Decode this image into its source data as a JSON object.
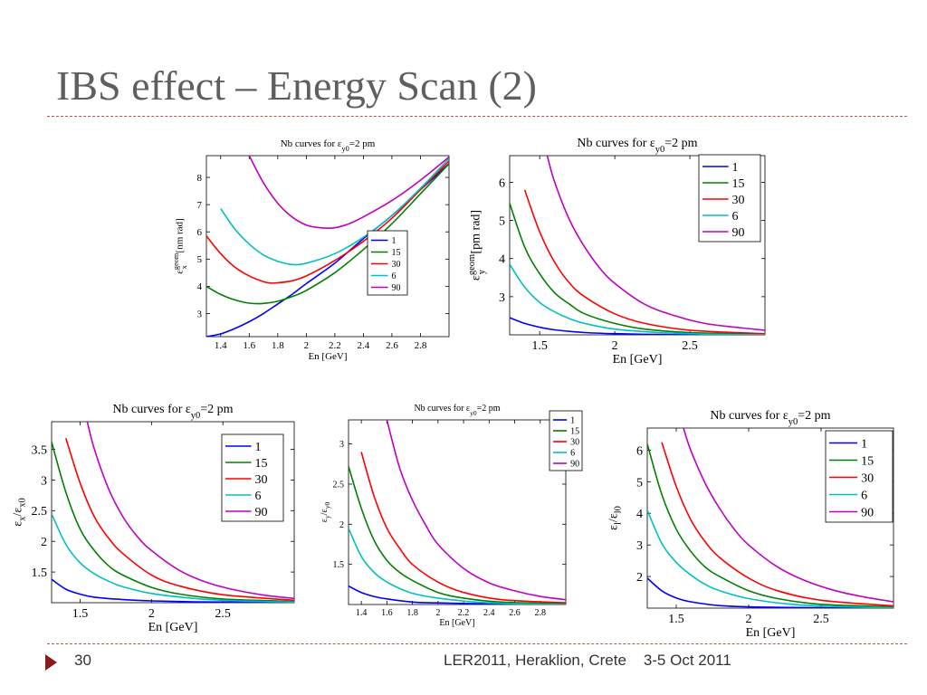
{
  "slide": {
    "title": "IBS effect – Energy Scan (2)",
    "page_number": "30",
    "footer_conference": "LER2011, Heraklion, Crete",
    "footer_date": "3-5 Oct 2011",
    "accent_color": "#c0504d",
    "arrow_color": "#8b1a1a"
  },
  "series_colors": {
    "1": "#0000ff",
    "15": "#008000",
    "30": "#ff0000",
    "6": "#00c0c0",
    "90": "#c000c0"
  },
  "chart_data": [
    {
      "type": "line",
      "title_main": "Nb curves for ε",
      "title_sub": "y0",
      "title_tail": "=2 pm",
      "xlabel": "En [GeV]",
      "ylabel_main": "ε",
      "ylabel_sup": "geom",
      "ylabel_sub": "x",
      "ylabel_tail": " [nm rad]",
      "xlim": [
        1.3,
        3.0
      ],
      "ylim": [
        2.15,
        8.8
      ],
      "xticks": [
        1.4,
        1.6,
        1.8,
        2,
        2.2,
        2.4,
        2.6,
        2.8
      ],
      "xtick_labels": [
        "1.4",
        "1.6",
        "1.8",
        "2",
        "2.2",
        "2.4",
        "2.6",
        "2.8"
      ],
      "yticks": [
        3,
        4,
        5,
        6,
        7,
        8
      ],
      "ytick_labels": [
        "3",
        "4",
        "5",
        "6",
        "7",
        "8"
      ],
      "legend_position": "lower-right",
      "series": [
        {
          "name": "1",
          "x": [
            1.3,
            1.4,
            1.5,
            1.6,
            1.7,
            1.8,
            1.9,
            2.0,
            2.2,
            2.4,
            2.6,
            2.8,
            3.0
          ],
          "y": [
            2.15,
            2.25,
            2.45,
            2.7,
            3.0,
            3.35,
            3.7,
            4.1,
            4.85,
            5.75,
            6.6,
            7.55,
            8.5
          ]
        },
        {
          "name": "15",
          "x": [
            1.3,
            1.4,
            1.5,
            1.6,
            1.7,
            1.8,
            1.9,
            2.0,
            2.2,
            2.4,
            2.6,
            2.8,
            3.0
          ],
          "y": [
            4.0,
            3.7,
            3.5,
            3.38,
            3.37,
            3.45,
            3.62,
            3.85,
            4.5,
            5.35,
            6.3,
            7.4,
            8.5
          ]
        },
        {
          "name": "30",
          "x": [
            1.3,
            1.4,
            1.5,
            1.6,
            1.7,
            1.75,
            1.8,
            1.9,
            2.0,
            2.2,
            2.4,
            2.6,
            2.8,
            3.0
          ],
          "y": [
            5.85,
            5.2,
            4.7,
            4.38,
            4.17,
            4.12,
            4.13,
            4.2,
            4.38,
            4.95,
            5.65,
            6.5,
            7.55,
            8.6
          ]
        },
        {
          "name": "6",
          "x": [
            1.4,
            1.5,
            1.6,
            1.7,
            1.8,
            1.9,
            2.0,
            2.2,
            2.4,
            2.6,
            2.8,
            3.0
          ],
          "y": [
            6.85,
            6.1,
            5.55,
            5.15,
            4.92,
            4.8,
            4.85,
            5.2,
            5.8,
            6.6,
            7.6,
            8.7
          ]
        },
        {
          "name": "90",
          "x": [
            1.6,
            1.7,
            1.8,
            1.9,
            2.0,
            2.1,
            2.2,
            2.3,
            2.4,
            2.6,
            2.8,
            3.0
          ],
          "y": [
            8.8,
            7.8,
            7.05,
            6.55,
            6.25,
            6.15,
            6.15,
            6.3,
            6.55,
            7.15,
            7.9,
            8.75
          ]
        }
      ]
    },
    {
      "type": "line",
      "title_main": "Nb curves for ε",
      "title_sub": "y0",
      "title_tail": "=2 pm",
      "xlabel": "En [GeV]",
      "ylabel_main": "ε",
      "ylabel_sup": "geom",
      "ylabel_sub": "y",
      "ylabel_tail": " [pm rad]",
      "xlim": [
        1.3,
        3.0
      ],
      "ylim": [
        2.0,
        6.7
      ],
      "xticks": [
        1.5,
        2,
        2.5
      ],
      "xtick_labels": [
        "1.5",
        "2",
        "2.5"
      ],
      "yticks": [
        3,
        4,
        5,
        6
      ],
      "ytick_labels": [
        "3",
        "4",
        "5",
        "6"
      ],
      "legend_position": "top-right",
      "series": [
        {
          "name": "1",
          "x": [
            1.3,
            1.4,
            1.5,
            1.6,
            1.8,
            2.0,
            2.3,
            2.6,
            3.0
          ],
          "y": [
            2.45,
            2.3,
            2.2,
            2.13,
            2.06,
            2.03,
            2.01,
            2.0,
            2.0
          ]
        },
        {
          "name": "15",
          "x": [
            1.3,
            1.4,
            1.5,
            1.6,
            1.7,
            1.8,
            2.0,
            2.2,
            2.5,
            3.0
          ],
          "y": [
            5.45,
            4.3,
            3.6,
            3.1,
            2.8,
            2.55,
            2.3,
            2.15,
            2.06,
            2.02
          ]
        },
        {
          "name": "30",
          "x": [
            1.4,
            1.5,
            1.6,
            1.7,
            1.8,
            2.0,
            2.2,
            2.5,
            3.0
          ],
          "y": [
            5.8,
            4.7,
            3.9,
            3.35,
            3.0,
            2.55,
            2.3,
            2.12,
            2.03
          ]
        },
        {
          "name": "6",
          "x": [
            1.3,
            1.4,
            1.5,
            1.6,
            1.7,
            1.8,
            2.0,
            2.3,
            2.6,
            3.0
          ],
          "y": [
            3.85,
            3.25,
            2.85,
            2.6,
            2.42,
            2.3,
            2.15,
            2.06,
            2.02,
            2.0
          ]
        },
        {
          "name": "90",
          "x": [
            1.55,
            1.6,
            1.7,
            1.8,
            1.9,
            2.0,
            2.2,
            2.4,
            2.6,
            2.8,
            3.0
          ],
          "y": [
            6.7,
            6.0,
            5.0,
            4.3,
            3.75,
            3.35,
            2.8,
            2.5,
            2.3,
            2.2,
            2.12
          ]
        }
      ]
    },
    {
      "type": "line",
      "title_main": "Nb curves for ε",
      "title_sub": "y0",
      "title_tail": "=2 pm",
      "xlabel": "En [GeV]",
      "ylabel_main": "ε",
      "ylabel_sup": "",
      "ylabel_sub": "x",
      "ylabel_tail": "/ε",
      "ylabel_sub2": "x0",
      "xlim": [
        1.3,
        3.0
      ],
      "ylim": [
        1.0,
        3.95
      ],
      "xticks": [
        1.5,
        2,
        2.5
      ],
      "xtick_labels": [
        "1.5",
        "2",
        "2.5"
      ],
      "yticks": [
        1.5,
        2,
        2.5,
        3,
        3.5
      ],
      "ytick_labels": [
        "1.5",
        "2",
        "2.5",
        "3",
        "3.5"
      ],
      "legend_position": "top-right",
      "series": [
        {
          "name": "1",
          "x": [
            1.3,
            1.4,
            1.5,
            1.6,
            1.8,
            2.0,
            2.3,
            2.6,
            3.0
          ],
          "y": [
            1.38,
            1.22,
            1.14,
            1.09,
            1.05,
            1.03,
            1.015,
            1.01,
            1.0
          ]
        },
        {
          "name": "15",
          "x": [
            1.3,
            1.4,
            1.5,
            1.6,
            1.7,
            1.8,
            2.0,
            2.2,
            2.5,
            3.0
          ],
          "y": [
            3.62,
            2.8,
            2.2,
            1.85,
            1.6,
            1.45,
            1.25,
            1.14,
            1.06,
            1.02
          ]
        },
        {
          "name": "30",
          "x": [
            1.4,
            1.5,
            1.6,
            1.7,
            1.8,
            2.0,
            2.2,
            2.5,
            3.0
          ],
          "y": [
            3.68,
            2.95,
            2.4,
            2.05,
            1.8,
            1.45,
            1.27,
            1.13,
            1.04
          ]
        },
        {
          "name": "6",
          "x": [
            1.3,
            1.4,
            1.5,
            1.6,
            1.7,
            1.8,
            2.0,
            2.3,
            2.6,
            3.0
          ],
          "y": [
            2.45,
            1.95,
            1.65,
            1.47,
            1.35,
            1.26,
            1.15,
            1.07,
            1.03,
            1.01
          ]
        },
        {
          "name": "90",
          "x": [
            1.55,
            1.6,
            1.7,
            1.8,
            1.9,
            2.0,
            2.2,
            2.4,
            2.6,
            2.8,
            3.0
          ],
          "y": [
            3.95,
            3.5,
            2.85,
            2.4,
            2.08,
            1.85,
            1.52,
            1.32,
            1.2,
            1.12,
            1.07
          ]
        }
      ]
    },
    {
      "type": "line",
      "title_main": "Nb curves for ε",
      "title_sub": "y0",
      "title_tail": "=2 pm",
      "xlabel": "En [GeV]",
      "ylabel_main": "ε",
      "ylabel_sup": "",
      "ylabel_sub": "y",
      "ylabel_tail": "/ε",
      "ylabel_sub2": "y0",
      "xlim": [
        1.3,
        3.0
      ],
      "ylim": [
        1.0,
        3.3
      ],
      "xticks": [
        1.4,
        1.6,
        1.8,
        2,
        2.2,
        2.4,
        2.6,
        2.8
      ],
      "xtick_labels": [
        "1.4",
        "1.6",
        "1.8",
        "2",
        "2.2",
        "2.4",
        "2.6",
        "2.8"
      ],
      "yticks": [
        1.5,
        2,
        2.5,
        3
      ],
      "ytick_labels": [
        "1.5",
        "2",
        "2.5",
        "3"
      ],
      "legend_position": "top-right-outside",
      "series": [
        {
          "name": "1",
          "x": [
            1.3,
            1.4,
            1.5,
            1.6,
            1.8,
            2.0,
            2.3,
            2.6,
            3.0
          ],
          "y": [
            1.23,
            1.15,
            1.1,
            1.07,
            1.03,
            1.02,
            1.01,
            1.0,
            1.0
          ]
        },
        {
          "name": "15",
          "x": [
            1.3,
            1.4,
            1.5,
            1.6,
            1.7,
            1.8,
            2.0,
            2.2,
            2.5,
            3.0
          ],
          "y": [
            2.72,
            2.2,
            1.8,
            1.55,
            1.4,
            1.3,
            1.15,
            1.08,
            1.03,
            1.01
          ]
        },
        {
          "name": "30",
          "x": [
            1.4,
            1.5,
            1.6,
            1.7,
            1.8,
            2.0,
            2.2,
            2.5,
            3.0
          ],
          "y": [
            2.9,
            2.35,
            1.95,
            1.7,
            1.5,
            1.28,
            1.15,
            1.06,
            1.02
          ]
        },
        {
          "name": "6",
          "x": [
            1.3,
            1.4,
            1.5,
            1.6,
            1.7,
            1.8,
            2.0,
            2.3,
            2.6,
            3.0
          ],
          "y": [
            1.95,
            1.6,
            1.4,
            1.28,
            1.2,
            1.14,
            1.08,
            1.03,
            1.01,
            1.0
          ]
        },
        {
          "name": "90",
          "x": [
            1.6,
            1.7,
            1.8,
            1.9,
            2.0,
            2.2,
            2.4,
            2.6,
            2.8,
            3.0
          ],
          "y": [
            3.3,
            2.7,
            2.3,
            2.0,
            1.75,
            1.45,
            1.27,
            1.17,
            1.1,
            1.06
          ]
        }
      ]
    },
    {
      "type": "line",
      "title_main": "Nb curves for ε",
      "title_sub": "y0",
      "title_tail": "=2 pm",
      "xlabel": "En [GeV]",
      "ylabel_main": "ε",
      "ylabel_sup": "",
      "ylabel_sub": "l",
      "ylabel_tail": "/ε",
      "ylabel_sub2": "l0",
      "xlim": [
        1.3,
        3.0
      ],
      "ylim": [
        1.0,
        6.7
      ],
      "xticks": [
        1.5,
        2,
        2.5
      ],
      "xtick_labels": [
        "1.5",
        "2",
        "2.5"
      ],
      "yticks": [
        2,
        3,
        4,
        5,
        6
      ],
      "ytick_labels": [
        "2",
        "3",
        "4",
        "5",
        "6"
      ],
      "legend_position": "top-right",
      "series": [
        {
          "name": "1",
          "x": [
            1.3,
            1.4,
            1.5,
            1.6,
            1.8,
            2.0,
            2.3,
            2.6,
            3.0
          ],
          "y": [
            1.95,
            1.55,
            1.32,
            1.2,
            1.08,
            1.04,
            1.02,
            1.01,
            1.0
          ]
        },
        {
          "name": "15",
          "x": [
            1.3,
            1.4,
            1.5,
            1.6,
            1.7,
            1.8,
            2.0,
            2.2,
            2.5,
            3.0
          ],
          "y": [
            6.2,
            4.6,
            3.5,
            2.8,
            2.3,
            2.0,
            1.55,
            1.3,
            1.12,
            1.04
          ]
        },
        {
          "name": "30",
          "x": [
            1.4,
            1.5,
            1.6,
            1.7,
            1.8,
            2.0,
            2.2,
            2.5,
            3.0
          ],
          "y": [
            6.25,
            4.85,
            3.8,
            3.1,
            2.6,
            1.95,
            1.55,
            1.25,
            1.07
          ]
        },
        {
          "name": "6",
          "x": [
            1.3,
            1.4,
            1.5,
            1.6,
            1.7,
            1.8,
            2.0,
            2.3,
            2.6,
            3.0
          ],
          "y": [
            4.1,
            3.05,
            2.45,
            2.05,
            1.75,
            1.55,
            1.3,
            1.12,
            1.05,
            1.01
          ]
        },
        {
          "name": "90",
          "x": [
            1.55,
            1.6,
            1.7,
            1.8,
            1.9,
            2.0,
            2.2,
            2.4,
            2.6,
            2.8,
            3.0
          ],
          "y": [
            6.7,
            6.0,
            4.95,
            4.15,
            3.5,
            3.0,
            2.3,
            1.85,
            1.55,
            1.35,
            1.2
          ]
        }
      ]
    }
  ]
}
